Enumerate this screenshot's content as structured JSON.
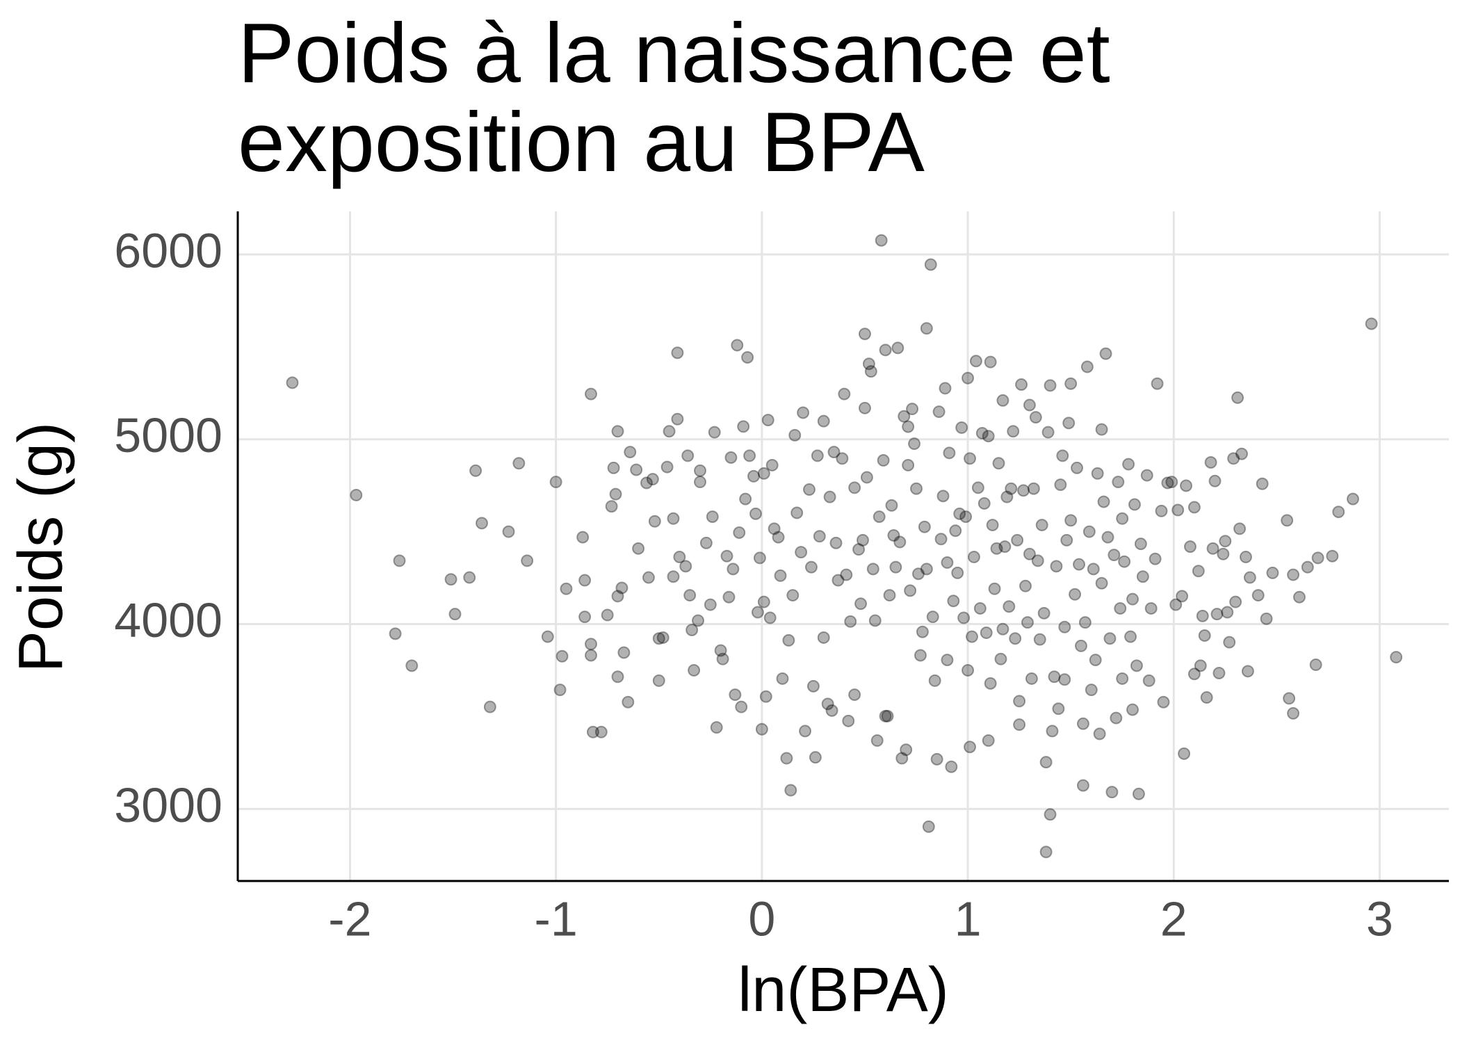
{
  "chart_data": {
    "type": "scatter",
    "title": [
      "Poids à la naissance et",
      "exposition au BPA"
    ],
    "x_label": "ln(BPA)",
    "y_label": "Poids (g)",
    "xlim": [
      -2.545,
      3.336
    ],
    "ylim": [
      2610,
      6233
    ],
    "xticks": [
      -2,
      -1,
      0,
      1,
      2,
      3
    ],
    "yticks": [
      3000,
      4000,
      5000,
      6000
    ],
    "grid": true,
    "color": "#000000",
    "x": [
      -2.28,
      -1.97,
      -1.76,
      -1.78,
      -1.7,
      -1.51,
      -1.49,
      -1.42,
      -1.39,
      -1.36,
      -1.32,
      -1.23,
      -1.18,
      -1.14,
      -1.04,
      -1.0,
      -0.98,
      -0.97,
      -0.95,
      -0.87,
      -0.86,
      -0.86,
      -0.83,
      -0.83,
      -0.83,
      -0.82,
      -0.78,
      -0.75,
      -0.73,
      -0.72,
      -0.71,
      -0.7,
      -0.7,
      -0.7,
      -0.68,
      -0.67,
      -0.65,
      -0.64,
      -0.61,
      -0.6,
      -0.56,
      -0.55,
      -0.53,
      -0.52,
      -0.5,
      -0.5,
      -0.48,
      -0.46,
      -0.45,
      -0.43,
      -0.43,
      -0.41,
      -0.41,
      -0.4,
      -0.37,
      -0.36,
      -0.35,
      -0.34,
      -0.33,
      -0.31,
      -0.3,
      -0.3,
      -0.27,
      -0.25,
      -0.24,
      -0.23,
      -0.22,
      -0.2,
      -0.19,
      -0.17,
      -0.16,
      -0.15,
      -0.14,
      -0.13,
      -0.12,
      -0.11,
      -0.1,
      -0.09,
      -0.08,
      -0.07,
      -0.06,
      -0.04,
      -0.03,
      -0.02,
      -0.01,
      0.0,
      0.01,
      0.01,
      0.02,
      0.03,
      0.04,
      0.05,
      0.06,
      0.08,
      0.09,
      0.1,
      0.12,
      0.13,
      0.14,
      0.15,
      0.16,
      0.17,
      0.19,
      0.2,
      0.21,
      0.23,
      0.24,
      0.25,
      0.26,
      0.27,
      0.28,
      0.3,
      0.3,
      0.32,
      0.33,
      0.34,
      0.35,
      0.36,
      0.37,
      0.39,
      0.4,
      0.41,
      0.42,
      0.43,
      0.45,
      0.45,
      0.47,
      0.48,
      0.49,
      0.5,
      0.5,
      0.51,
      0.52,
      0.53,
      0.54,
      0.55,
      0.56,
      0.57,
      0.58,
      0.59,
      0.6,
      0.6,
      0.61,
      0.62,
      0.63,
      0.64,
      0.65,
      0.66,
      0.67,
      0.68,
      0.69,
      0.7,
      0.71,
      0.71,
      0.72,
      0.73,
      0.74,
      0.75,
      0.76,
      0.77,
      0.78,
      0.79,
      0.8,
      0.8,
      0.81,
      0.82,
      0.83,
      0.84,
      0.85,
      0.86,
      0.87,
      0.88,
      0.89,
      0.9,
      0.9,
      0.91,
      0.92,
      0.93,
      0.94,
      0.95,
      0.96,
      0.97,
      0.98,
      0.99,
      1.0,
      1.0,
      1.01,
      1.01,
      1.02,
      1.03,
      1.04,
      1.05,
      1.06,
      1.07,
      1.08,
      1.09,
      1.1,
      1.1,
      1.11,
      1.11,
      1.12,
      1.13,
      1.14,
      1.15,
      1.16,
      1.17,
      1.17,
      1.18,
      1.19,
      1.2,
      1.21,
      1.22,
      1.23,
      1.24,
      1.25,
      1.25,
      1.26,
      1.27,
      1.28,
      1.29,
      1.3,
      1.3,
      1.31,
      1.32,
      1.33,
      1.34,
      1.35,
      1.36,
      1.37,
      1.38,
      1.38,
      1.39,
      1.4,
      1.4,
      1.41,
      1.42,
      1.43,
      1.44,
      1.45,
      1.46,
      1.47,
      1.47,
      1.48,
      1.49,
      1.5,
      1.5,
      1.52,
      1.53,
      1.54,
      1.55,
      1.56,
      1.56,
      1.57,
      1.58,
      1.59,
      1.6,
      1.61,
      1.62,
      1.63,
      1.64,
      1.65,
      1.65,
      1.66,
      1.67,
      1.68,
      1.69,
      1.7,
      1.71,
      1.72,
      1.73,
      1.74,
      1.75,
      1.75,
      1.76,
      1.78,
      1.79,
      1.8,
      1.8,
      1.81,
      1.82,
      1.83,
      1.84,
      1.85,
      1.87,
      1.88,
      1.89,
      1.91,
      1.92,
      1.94,
      1.95,
      1.97,
      1.99,
      2.01,
      2.02,
      2.04,
      2.05,
      2.06,
      2.08,
      2.1,
      2.1,
      2.12,
      2.13,
      2.14,
      2.15,
      2.16,
      2.18,
      2.19,
      2.2,
      2.21,
      2.22,
      2.24,
      2.25,
      2.26,
      2.27,
      2.29,
      2.3,
      2.31,
      2.32,
      2.33,
      2.35,
      2.36,
      2.37,
      2.41,
      2.43,
      2.45,
      2.48,
      2.55,
      2.56,
      2.58,
      2.58,
      2.61,
      2.65,
      2.69,
      2.7,
      2.77,
      2.8,
      2.87,
      2.96,
      3.08
    ],
    "y": [
      5306,
      4698,
      4343,
      3948,
      3775,
      4242,
      4054,
      4252,
      4830,
      4546,
      3552,
      4500,
      4870,
      4343,
      3932,
      4769,
      3644,
      3826,
      4191,
      4470,
      4237,
      4039,
      5245,
      3892,
      3831,
      3416,
      3416,
      4049,
      4637,
      4845,
      4703,
      5043,
      4151,
      3715,
      4196,
      3846,
      3578,
      4931,
      4835,
      4409,
      4764,
      4252,
      4784,
      4556,
      3694,
      3922,
      3927,
      4850,
      5043,
      4571,
      4257,
      5468,
      5109,
      4363,
      4313,
      4911,
      4156,
      3968,
      3750,
      4019,
      4769,
      4830,
      4439,
      4105,
      4581,
      5038,
      3441,
      3857,
      3811,
      4368,
      4146,
      4901,
      4298,
      3618,
      5509,
      4495,
      3552,
      5069,
      4677,
      5443,
      4911,
      4800,
      4597,
      4064,
      4358,
      3431,
      4815,
      4120,
      3608,
      5104,
      4034,
      4860,
      4516,
      4470,
      4262,
      3705,
      3274,
      3912,
      3101,
      4156,
      5022,
      4602,
      4389,
      5144,
      3421,
      4728,
      4308,
      3664,
      3279,
      4911,
      4475,
      5098,
      3927,
      3568,
      4688,
      3532,
      4931,
      4439,
      4237,
      4896,
      5245,
      4267,
      3476,
      4014,
      4738,
      3618,
      4404,
      4110,
      4454,
      5570,
      5169,
      4794,
      5408,
      5367,
      4298,
      4019,
      3370,
      4581,
      6076,
      4886,
      3502,
      5483,
      3502,
      4156,
      4642,
      4480,
      4308,
      5494,
      4444,
      3274,
      5124,
      3320,
      4860,
      5068,
      4181,
      5164,
      4976,
      4733,
      4272,
      3831,
      3958,
      4526,
      4298,
      5600,
      2904,
      5945,
      4039,
      3694,
      3269,
      5149,
      4460,
      4693,
      5276,
      3806,
      4333,
      4926,
      3228,
      4125,
      4505,
      4277,
      4597,
      5063,
      4034,
      4581,
      5331,
      3750,
      3335,
      4896,
      3932,
      4363,
      5423,
      4738,
      4085,
      5033,
      4653,
      3953,
      5017,
      3370,
      3679,
      5418,
      4536,
      4191,
      4409,
      4870,
      3811,
      3973,
      5210,
      4419,
      4688,
      4095,
      4733,
      5043,
      3922,
      4454,
      3456,
      3583,
      5296,
      4723,
      4206,
      4009,
      5185,
      4379,
      3705,
      4733,
      5119,
      4343,
      3917,
      4536,
      4059,
      2767,
      3253,
      5038,
      5291,
      2970,
      3421,
      3715,
      4313,
      3542,
      4754,
      4911,
      3984,
      3700,
      4454,
      5088,
      5301,
      4561,
      4161,
      4845,
      4323,
      3882,
      3127,
      3461,
      4009,
      5392,
      4500,
      3644,
      4298,
      3806,
      4815,
      3406,
      5053,
      4221,
      4662,
      5463,
      4470,
      3922,
      3091,
      4374,
      3492,
      4769,
      4085,
      4571,
      3705,
      4338,
      4865,
      3932,
      3537,
      4135,
      4647,
      3775,
      3081,
      4434,
      4257,
      4805,
      3694,
      4085,
      4353,
      5301,
      4612,
      3578,
      4764,
      4769,
      4105,
      4617,
      4151,
      3299,
      4749,
      4419,
      3730,
      4632,
      4287,
      3775,
      4044,
      3938,
      3603,
      4875,
      4409,
      4774,
      4054,
      3735,
      4379,
      4449,
      4064,
      3902,
      4896,
      4120,
      5225,
      4516,
      4921,
      4363,
      3745,
      4252,
      4156,
      4759,
      4029,
      4277,
      4561,
      3598,
      4267,
      3517,
      4146,
      4308,
      3780,
      4358,
      4368,
      4607,
      4677,
      5625,
      3821
    ]
  }
}
